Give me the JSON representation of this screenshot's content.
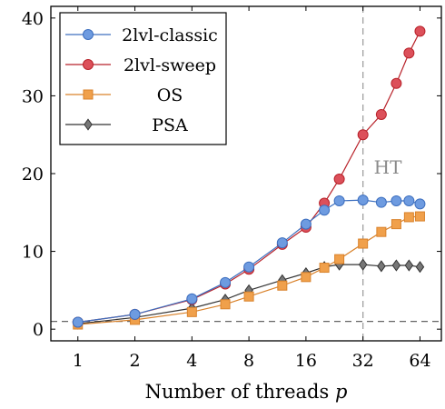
{
  "chart_data": {
    "type": "line",
    "xlabel": "Number of threads",
    "xlabel_var": "p",
    "ylabel": "",
    "x_scale": "log2",
    "xlim": [
      0.72,
      83
    ],
    "ylim": [
      -1.5,
      41.5
    ],
    "xticks": [
      1,
      2,
      4,
      8,
      16,
      32,
      64
    ],
    "xtick_labels": [
      "1",
      "2",
      "4",
      "8",
      "16",
      "32",
      "64"
    ],
    "yticks": [
      0,
      10,
      20,
      30,
      40
    ],
    "ytick_labels": [
      "0",
      "10",
      "20",
      "30",
      "40"
    ],
    "legend_position": "top-left",
    "reference_lines": [
      {
        "orientation": "horizontal",
        "value": 1,
        "style": "dashed",
        "color": "#666666"
      },
      {
        "orientation": "vertical",
        "value": 32,
        "style": "dashed",
        "color": "#a0a0a0"
      }
    ],
    "annotations": [
      {
        "text": "HT",
        "x": 32,
        "y": 20
      }
    ],
    "series": [
      {
        "name": "2lvl-classic",
        "color": "#3d6fbf",
        "fill": "#6e9be0",
        "marker": "circle",
        "x": [
          1,
          2,
          4,
          6,
          8,
          12,
          16,
          20,
          24,
          32,
          40,
          48,
          56,
          64
        ],
        "y": [
          0.9,
          1.9,
          3.9,
          6.0,
          8.0,
          11.1,
          13.5,
          15.3,
          16.5,
          16.6,
          16.3,
          16.5,
          16.5,
          16.1
        ]
      },
      {
        "name": "2lvl-sweep",
        "color": "#b8222a",
        "fill": "#dc505a",
        "marker": "circle",
        "x": [
          1,
          2,
          4,
          6,
          8,
          12,
          16,
          20,
          24,
          32,
          40,
          48,
          56,
          64
        ],
        "y": [
          0.9,
          1.9,
          3.8,
          5.8,
          7.7,
          10.9,
          13.1,
          16.2,
          19.3,
          25.0,
          27.6,
          31.6,
          35.5,
          38.3
        ]
      },
      {
        "name": "OS",
        "color": "#d9822b",
        "fill": "#f0a04b",
        "marker": "square",
        "x": [
          1,
          2,
          4,
          6,
          8,
          12,
          16,
          20,
          24,
          32,
          40,
          48,
          56,
          64
        ],
        "y": [
          0.6,
          1.2,
          2.2,
          3.2,
          4.2,
          5.6,
          6.7,
          7.9,
          9.0,
          11.0,
          12.5,
          13.5,
          14.4,
          14.5
        ]
      },
      {
        "name": "PSA",
        "color": "#333333",
        "fill": "#777777",
        "marker": "diamond",
        "x": [
          1,
          2,
          4,
          6,
          8,
          12,
          16,
          20,
          24,
          32,
          40,
          48,
          56,
          64
        ],
        "y": [
          0.7,
          1.5,
          2.7,
          3.8,
          5.0,
          6.3,
          7.2,
          8.0,
          8.3,
          8.3,
          8.1,
          8.2,
          8.2,
          8.0
        ]
      }
    ]
  }
}
